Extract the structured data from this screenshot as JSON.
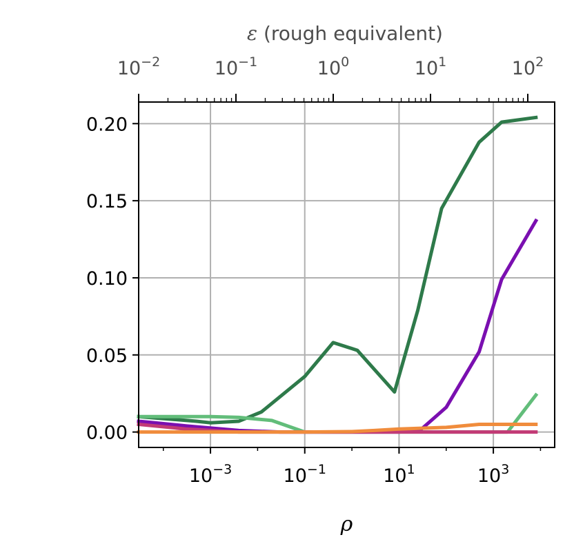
{
  "chart_data": {
    "type": "line",
    "title": "",
    "xlabel": "ρ",
    "ylabel": "",
    "x_scale": "log",
    "xlim": [
      3e-05,
      20000
    ],
    "ylim": [
      -0.01,
      0.214
    ],
    "grid": true,
    "x_ticks": [
      {
        "value": 0.001,
        "base": "10",
        "exp": "−3"
      },
      {
        "value": 0.1,
        "base": "10",
        "exp": "−1"
      },
      {
        "value": 10,
        "base": "10",
        "exp": "1"
      },
      {
        "value": 1000,
        "base": "10",
        "exp": "3"
      }
    ],
    "y_ticks": [
      {
        "value": 0.0,
        "label": "0.00"
      },
      {
        "value": 0.05,
        "label": "0.05"
      },
      {
        "value": 0.1,
        "label": "0.10"
      },
      {
        "value": 0.15,
        "label": "0.15"
      },
      {
        "value": 0.2,
        "label": "0.20"
      }
    ],
    "secondary_x_axis": {
      "label": "ε (rough equivalent)",
      "label_symbol": "ε",
      "label_text": " (rough equivalent)",
      "ticks": [
        {
          "value": 0.01,
          "base": "10",
          "exp": "−2"
        },
        {
          "value": 0.1,
          "base": "10",
          "exp": "−1"
        },
        {
          "value": 1,
          "base": "10",
          "exp": "0"
        },
        {
          "value": 10,
          "base": "10",
          "exp": "1"
        },
        {
          "value": 100,
          "base": "10",
          "exp": "2"
        }
      ],
      "minor_ticks_shown": true
    },
    "series": [
      {
        "color": "#2e7a4a",
        "x": [
          3e-05,
          0.0005,
          0.001,
          0.004,
          0.012,
          0.1,
          0.4,
          1.3,
          8,
          25,
          80,
          500,
          1500,
          8000
        ],
        "y": [
          0.01,
          0.007,
          0.006,
          0.007,
          0.013,
          0.036,
          0.058,
          0.053,
          0.026,
          0.079,
          0.145,
          0.188,
          0.201,
          0.204
        ]
      },
      {
        "color": "#62bd7a",
        "x": [
          3e-05,
          0.001,
          0.004,
          0.02,
          0.1,
          0.4,
          1.3,
          8,
          30,
          100,
          500,
          2000,
          8000
        ],
        "y": [
          0.01,
          0.01,
          0.0095,
          0.0075,
          0.0,
          0.0,
          0.0,
          0.0,
          0.0,
          0.0,
          0.0,
          0.0,
          0.024
        ]
      },
      {
        "color": "#7a0fb0",
        "x": [
          3e-05,
          0.0003,
          0.004,
          0.03,
          0.1,
          1,
          10,
          30,
          100,
          500,
          1500,
          8000
        ],
        "y": [
          0.007,
          0.004,
          0.001,
          0.0,
          0.0,
          0.0,
          0.0,
          0.002,
          0.016,
          0.052,
          0.099,
          0.137
        ]
      },
      {
        "color": "#c23b76",
        "x": [
          3e-05,
          0.0003,
          0.004,
          0.03,
          1,
          100,
          8000
        ],
        "y": [
          0.005,
          0.002,
          0.0,
          0.0,
          0.0,
          0.0,
          0.0
        ]
      },
      {
        "color": "#f08c3c",
        "x": [
          3e-05,
          0.001,
          0.1,
          1,
          3,
          10,
          100,
          500,
          8000
        ],
        "y": [
          0.0,
          0.0,
          0.0,
          0.0003,
          0.001,
          0.002,
          0.003,
          0.005,
          0.005
        ]
      }
    ]
  }
}
